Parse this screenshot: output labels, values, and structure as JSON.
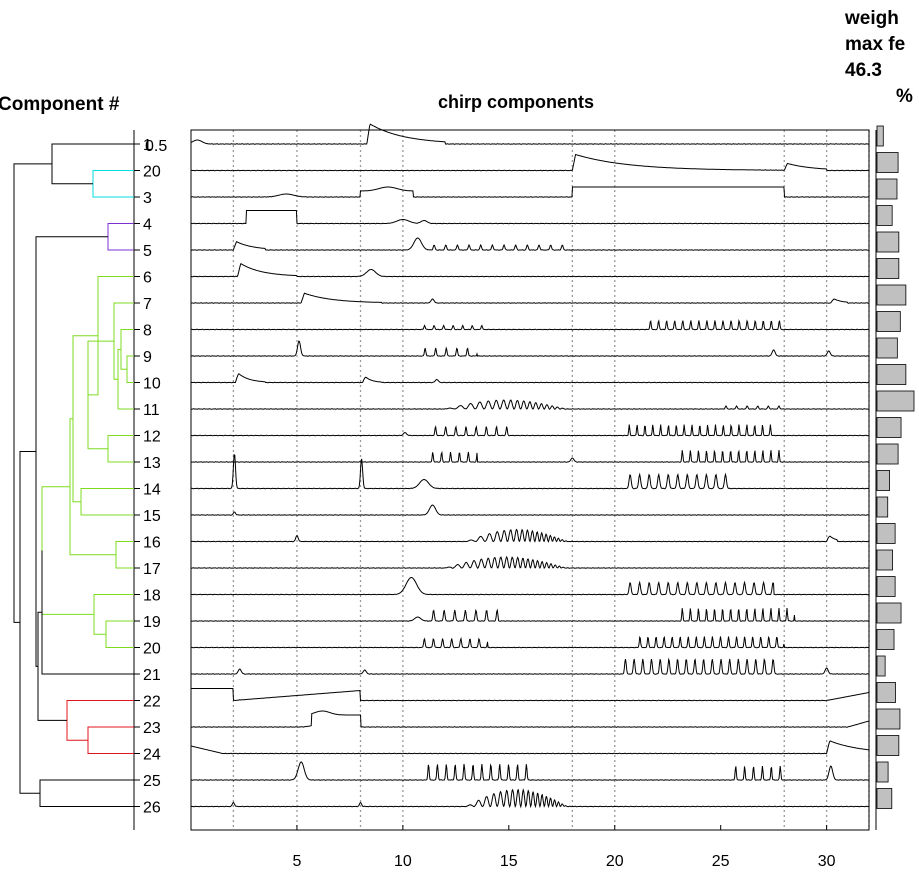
{
  "chart_data": [
    {
      "type": "dendrogram",
      "title": "Component #",
      "leaf_labels": [
        "1",
        "20",
        "3",
        "4",
        "5",
        "6",
        "7",
        "8",
        "9",
        "10",
        "11",
        "12",
        "13",
        "14",
        "15",
        "16",
        "17",
        "18",
        "19",
        "20",
        "21",
        "22",
        "23",
        "24",
        "25",
        "26"
      ],
      "overlay_label": "0.5",
      "cluster_colors": {
        "cyan": "#00dede",
        "purple": "#7b2fd0",
        "green": "#7ddc1f",
        "red": "#e0141e",
        "black": "#000000"
      }
    },
    {
      "type": "line",
      "title": "chirp components",
      "xlim": [
        0,
        32
      ],
      "xticks": [
        5,
        10,
        15,
        20,
        25,
        30
      ],
      "vlines": [
        2,
        5,
        8,
        10,
        18,
        20,
        28,
        30,
        32
      ],
      "series_count": 26
    },
    {
      "type": "bar",
      "orientation": "horizontal",
      "title_lines": [
        "weigh",
        "max fe",
        "46.3",
        "%"
      ],
      "bar_color": "#c0c0c0",
      "values": [
        0.17,
        0.57,
        0.54,
        0.41,
        0.59,
        0.59,
        0.78,
        0.63,
        0.55,
        0.78,
        1.0,
        0.65,
        0.57,
        0.34,
        0.29,
        0.49,
        0.42,
        0.49,
        0.65,
        0.46,
        0.22,
        0.5,
        0.62,
        0.59,
        0.3,
        0.4
      ]
    }
  ]
}
